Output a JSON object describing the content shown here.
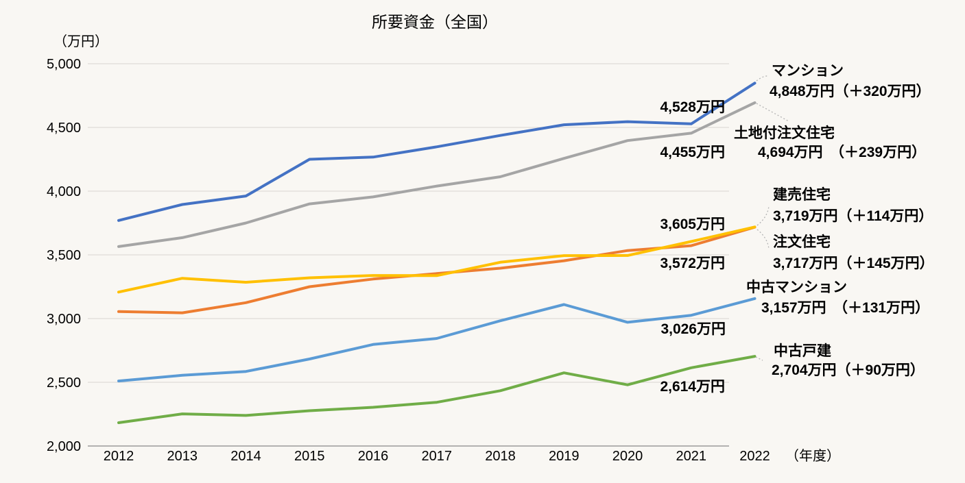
{
  "title": "所要資金（全国）",
  "y_axis": {
    "unit_label": "（万円）",
    "ticks": [
      "5,000",
      "4,500",
      "4,000",
      "3,500",
      "3,000",
      "2,500",
      "2,000"
    ],
    "min": 2000,
    "max": 5000,
    "step": 500
  },
  "x_axis": {
    "unit_label": "（年度）",
    "years": [
      "2012",
      "2013",
      "2014",
      "2015",
      "2016",
      "2017",
      "2018",
      "2019",
      "2020",
      "2021",
      "2022"
    ]
  },
  "chart_data": {
    "type": "line",
    "title": "所要資金（全国）",
    "xlabel": "年度",
    "ylabel": "万円",
    "ylim": [
      2000,
      5000
    ],
    "grid": "horizontal",
    "legend_position": "right-annotations",
    "x": [
      2012,
      2013,
      2014,
      2015,
      2016,
      2017,
      2018,
      2019,
      2020,
      2021,
      2022
    ],
    "series": [
      {
        "name": "土地付注文住宅",
        "slug": "custom-house-with-land",
        "color": "#A5A5A5",
        "values": [
          3565,
          3635,
          3750,
          3900,
          3955,
          4040,
          4113,
          4257,
          4397,
          4455,
          4694
        ]
      },
      {
        "name": "マンション",
        "slug": "mansion",
        "color": "#4472C4",
        "values": [
          3770,
          3895,
          3962,
          4250,
          4267,
          4348,
          4437,
          4521,
          4545,
          4528,
          4848
        ]
      },
      {
        "name": "注文住宅",
        "slug": "custom-house",
        "color": "#ED7D31",
        "values": [
          3055,
          3045,
          3125,
          3250,
          3310,
          3353,
          3395,
          3454,
          3534,
          3572,
          3717
        ]
      },
      {
        "name": "建売住宅",
        "slug": "ready-built-house",
        "color": "#FFC000",
        "values": [
          3208,
          3316,
          3285,
          3320,
          3338,
          3337,
          3442,
          3494,
          3495,
          3605,
          3719
        ]
      },
      {
        "name": "中古戸建",
        "slug": "used-detached-house",
        "color": "#70AD47",
        "values": [
          2183,
          2252,
          2240,
          2277,
          2304,
          2343,
          2434,
          2574,
          2480,
          2614,
          2704
        ]
      },
      {
        "name": "中古マンション",
        "slug": "used-mansion",
        "color": "#5B9BD5",
        "values": [
          2510,
          2555,
          2585,
          2683,
          2797,
          2844,
          2983,
          3110,
          2971,
          3026,
          3157
        ]
      }
    ]
  },
  "annotations": [
    {
      "series": "マンション",
      "slug": "mansion",
      "name_line": "マンション",
      "value_line": "4,848万円（＋320万円）",
      "label_2021": "4,528万円"
    },
    {
      "series": "土地付注文住宅",
      "slug": "custom-house-with-land",
      "name_line": "土地付注文住宅",
      "value_line": "4,694万円　（＋239万円）",
      "label_2021": "4,455万円"
    },
    {
      "series": "建売住宅",
      "slug": "ready-built-house",
      "name_line": "建売住宅",
      "value_line": "3,719万円（＋114万円）",
      "label_2021": "3,605万円"
    },
    {
      "series": "注文住宅",
      "slug": "custom-house",
      "name_line": "注文住宅",
      "value_line": "3,717万円（＋145万円）",
      "label_2021": "3,572万円"
    },
    {
      "series": "中古マンション",
      "slug": "used-mansion",
      "name_line": "中古マンション",
      "value_line": "3,157万円　（＋131万円）",
      "label_2021": "3,026万円"
    },
    {
      "series": "中古戸建",
      "slug": "used-detached-house",
      "name_line": "中古戸建",
      "value_line": "2,704万円（＋90万円）",
      "label_2021": "2,614万円"
    }
  ],
  "colors": {
    "background": "#f9f7f3",
    "grid": "#d9d6d1",
    "axis": "#9a9a9a",
    "text": "#000000",
    "leader": "#b3b3b3"
  }
}
